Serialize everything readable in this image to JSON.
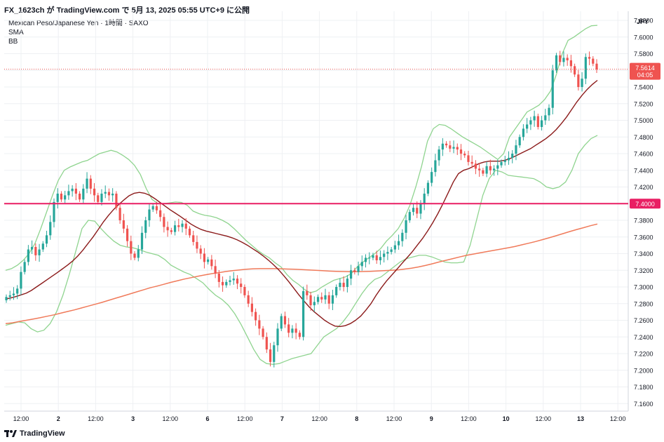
{
  "header": {
    "title": "FX_1623ch が TradingView.com で 5月 13, 2025 05:55 UTC+9 に公開"
  },
  "legend": {
    "symbol": "Mexican Peso/Japanese Yen · 1時間 · SAXO",
    "sma": "SMA",
    "bb": "BB"
  },
  "footer": {
    "brand": "TradingView"
  },
  "colors": {
    "up": "#26a69a",
    "down": "#ef5350",
    "bb": "#8fd48f",
    "sma_short": "#8b1a1a",
    "sma_long": "#f07a5a",
    "hline": "#e91e63",
    "price": "#ef5350"
  },
  "chart_data": {
    "type": "line",
    "currency": "JPY",
    "ylim": [
      7.16,
      7.625
    ],
    "yticks": [
      "7.6200",
      "7.6000",
      "7.5800",
      "7.5600",
      "7.5400",
      "7.5200",
      "7.5000",
      "7.4800",
      "7.4600",
      "7.4400",
      "7.4200",
      "7.4000",
      "7.3800",
      "7.3600",
      "7.3400",
      "7.3200",
      "7.3000",
      "7.2800",
      "7.2600",
      "7.2400",
      "7.2200",
      "7.2000",
      "7.1800",
      "7.1600"
    ],
    "xticks": [
      "12:00",
      "2",
      "12:00",
      "3",
      "12:00",
      "6",
      "12:00",
      "7",
      "12:00",
      "8",
      "12:00",
      "9",
      "12:00",
      "10",
      "12:00",
      "13",
      "12:00"
    ],
    "last_price": "7.5614",
    "countdown": "04:05",
    "level_line": "7.4000",
    "candles_closes": [
      7.288,
      7.29,
      7.292,
      7.298,
      7.318,
      7.33,
      7.345,
      7.348,
      7.338,
      7.345,
      7.352,
      7.362,
      7.378,
      7.402,
      7.412,
      7.405,
      7.41,
      7.415,
      7.418,
      7.412,
      7.405,
      7.418,
      7.43,
      7.418,
      7.41,
      7.402,
      7.412,
      7.414,
      7.41,
      7.412,
      7.395,
      7.38,
      7.37,
      7.355,
      7.34,
      7.335,
      7.345,
      7.365,
      7.38,
      7.393,
      7.397,
      7.392,
      7.384,
      7.372,
      7.368,
      7.366,
      7.374,
      7.372,
      7.376,
      7.37,
      7.362,
      7.354,
      7.346,
      7.34,
      7.33,
      7.333,
      7.325,
      7.316,
      7.306,
      7.302,
      7.306,
      7.308,
      7.31,
      7.304,
      7.3,
      7.29,
      7.28,
      7.27,
      7.26,
      7.25,
      7.24,
      7.225,
      7.21,
      7.23,
      7.25,
      7.265,
      7.255,
      7.245,
      7.25,
      7.245,
      7.24,
      7.295,
      7.29,
      7.278,
      7.282,
      7.288,
      7.285,
      7.29,
      7.28,
      7.29,
      7.3,
      7.305,
      7.3,
      7.31,
      7.32,
      7.318,
      7.325,
      7.33,
      7.335,
      7.335,
      7.338,
      7.332,
      7.336,
      7.34,
      7.342,
      7.345,
      7.35,
      7.355,
      7.365,
      7.38,
      7.39,
      7.395,
      7.388,
      7.4,
      7.412,
      7.425,
      7.438,
      7.452,
      7.465,
      7.472,
      7.47,
      7.466,
      7.468,
      7.465,
      7.46,
      7.458,
      7.45,
      7.448,
      7.442,
      7.44,
      7.436,
      7.445,
      7.44,
      7.442,
      7.446,
      7.45,
      7.452,
      7.455,
      7.46,
      7.47,
      7.48,
      7.49,
      7.495,
      7.5,
      7.505,
      7.492,
      7.5,
      7.506,
      7.515,
      7.56,
      7.578,
      7.57,
      7.575,
      7.572,
      7.565,
      7.555,
      7.54,
      7.55,
      7.576,
      7.574,
      7.568,
      7.561
    ],
    "series": [
      {
        "values": [
          7.2855,
          7.2868,
          7.2885,
          7.2905,
          7.2925,
          7.2958,
          7.3,
          7.3042,
          7.3085,
          7.3128,
          7.317,
          7.3215,
          7.326,
          7.331,
          7.337,
          7.344,
          7.352,
          7.36,
          7.369,
          7.378,
          7.386,
          7.393,
          7.399,
          7.4045,
          7.4095,
          7.4125,
          7.4135,
          7.4125,
          7.41,
          7.406,
          7.4015,
          7.397,
          7.3925,
          7.3885,
          7.3845,
          7.38,
          7.3755,
          7.372,
          7.369,
          7.367,
          7.3655,
          7.364,
          7.3625,
          7.361,
          7.359,
          7.3565,
          7.3535,
          7.35,
          7.346,
          7.342,
          7.3375,
          7.3325,
          7.327,
          7.321,
          7.314,
          7.3065,
          7.2985,
          7.2905,
          7.283,
          7.276,
          7.27,
          7.265,
          7.26,
          7.256,
          7.253,
          7.2525,
          7.2535,
          7.256,
          7.26,
          7.265,
          7.272,
          7.28,
          7.29,
          7.299,
          7.307,
          7.314,
          7.321,
          7.328,
          7.335,
          7.342,
          7.35,
          7.358,
          7.367,
          7.377,
          7.388,
          7.4,
          7.413,
          7.426,
          7.436,
          7.44,
          7.442,
          7.445,
          7.448,
          7.45,
          7.451,
          7.451,
          7.451,
          7.452,
          7.454,
          7.457,
          7.46,
          7.463,
          7.466,
          7.47,
          7.474,
          7.478,
          7.483,
          7.489,
          7.496,
          7.504,
          7.513,
          7.522,
          7.53,
          7.537,
          7.543,
          7.548
        ]
      },
      {
        "values": [
          7.256,
          7.257,
          7.2585,
          7.26,
          7.2615,
          7.263,
          7.2648,
          7.2665,
          7.2685,
          7.2705,
          7.2725,
          7.2747,
          7.277,
          7.2792,
          7.2815,
          7.284,
          7.2865,
          7.289,
          7.2915,
          7.294,
          7.2965,
          7.299,
          7.301,
          7.3032,
          7.3055,
          7.3075,
          7.3095,
          7.3112,
          7.313,
          7.3145,
          7.316,
          7.3172,
          7.3185,
          7.3195,
          7.3205,
          7.3212,
          7.3218,
          7.322,
          7.322,
          7.322,
          7.3218,
          7.3215,
          7.3212,
          7.3208,
          7.3205,
          7.32,
          7.3195,
          7.319,
          7.3187,
          7.3185,
          7.3183,
          7.3183,
          7.3185,
          7.3188,
          7.3192,
          7.3196,
          7.32,
          7.3205,
          7.3215,
          7.3225,
          7.324,
          7.3258,
          7.3278,
          7.33,
          7.332,
          7.334,
          7.336,
          7.338,
          7.3395,
          7.341,
          7.3425,
          7.344,
          7.3455,
          7.347,
          7.3485,
          7.3505,
          7.3525,
          7.3545,
          7.3568,
          7.359,
          7.3615,
          7.364,
          7.3665,
          7.369,
          7.3712,
          7.3735,
          7.3755
        ]
      },
      {
        "values": [
          7.32,
          7.322,
          7.326,
          7.332,
          7.34,
          7.352,
          7.37,
          7.39,
          7.41,
          7.428,
          7.44,
          7.444,
          7.447,
          7.45,
          7.452,
          7.456,
          7.46,
          7.462,
          7.464,
          7.462,
          7.458,
          7.453,
          7.446,
          7.435,
          7.418,
          7.405,
          7.4,
          7.4,
          7.401,
          7.402,
          7.4015,
          7.398,
          7.391,
          7.388,
          7.386,
          7.385,
          7.383,
          7.38,
          7.376,
          7.37,
          7.363,
          7.356,
          7.35,
          7.344,
          7.339,
          7.335,
          7.329,
          7.324,
          7.315,
          7.308,
          7.303,
          7.297,
          7.293,
          7.295,
          7.3,
          7.304,
          7.308,
          7.31,
          7.312,
          7.316,
          7.324,
          7.33,
          7.335,
          7.34,
          7.346,
          7.355,
          7.362,
          7.37,
          7.382,
          7.398,
          7.42,
          7.445,
          7.475,
          7.49,
          7.495,
          7.494,
          7.49,
          7.485,
          7.48,
          7.476,
          7.472,
          7.468,
          7.463,
          7.458,
          7.453,
          7.46,
          7.48,
          7.49,
          7.5,
          7.51,
          7.514,
          7.518,
          7.525,
          7.535,
          7.555,
          7.58,
          7.596,
          7.6,
          7.605,
          7.61,
          7.6135,
          7.614
        ]
      },
      {
        "values": [
          7.254,
          7.256,
          7.258,
          7.257,
          7.25,
          7.246,
          7.248,
          7.256,
          7.27,
          7.29,
          7.315,
          7.342,
          7.37,
          7.38,
          7.379,
          7.37,
          7.362,
          7.355,
          7.35,
          7.348,
          7.347,
          7.345,
          7.342,
          7.34,
          7.338,
          7.333,
          7.326,
          7.322,
          7.318,
          7.315,
          7.31,
          7.305,
          7.297,
          7.29,
          7.285,
          7.278,
          7.268,
          7.255,
          7.24,
          7.225,
          7.213,
          7.208,
          7.207,
          7.208,
          7.211,
          7.214,
          7.216,
          7.218,
          7.22,
          7.23,
          7.24,
          7.245,
          7.25,
          7.258,
          7.268,
          7.28,
          7.292,
          7.302,
          7.309,
          7.312,
          7.318,
          7.324,
          7.33,
          7.334,
          7.336,
          7.338,
          7.338,
          7.336,
          7.333,
          7.33,
          7.329,
          7.329,
          7.33,
          7.35,
          7.38,
          7.41,
          7.43,
          7.44,
          7.438,
          7.434,
          7.433,
          7.432,
          7.431,
          7.43,
          7.426,
          7.42,
          7.418,
          7.42,
          7.426,
          7.44,
          7.46,
          7.47,
          7.478,
          7.482
        ]
      }
    ]
  }
}
